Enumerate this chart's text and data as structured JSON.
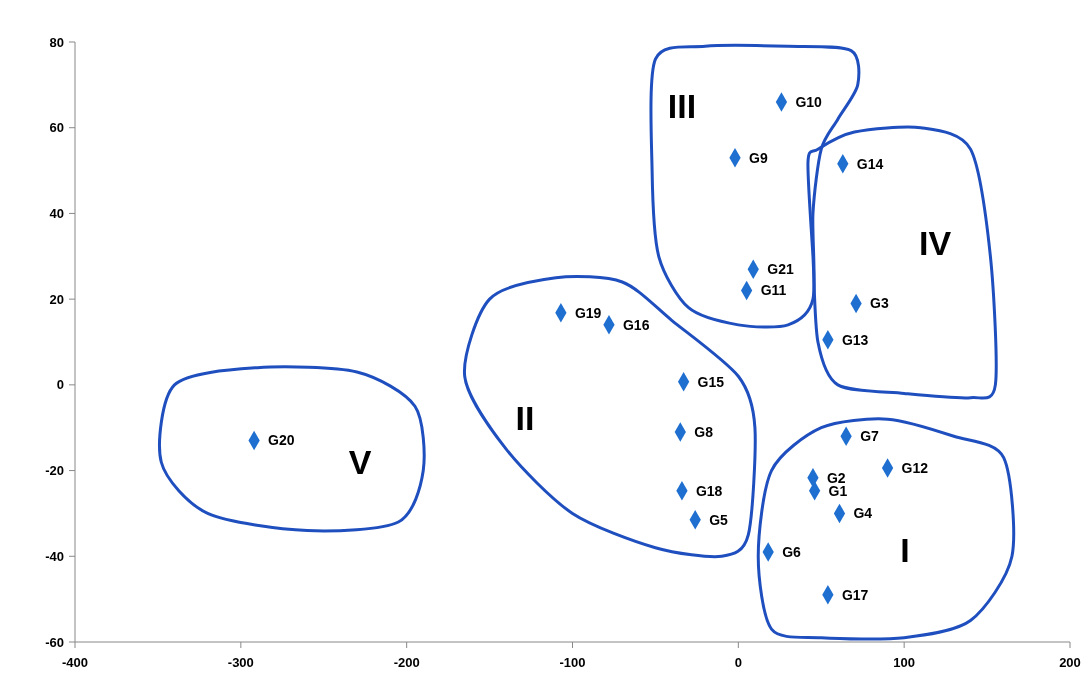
{
  "chart_data": {
    "type": "scatter",
    "marker": "diamond",
    "grid": false,
    "xlim": [
      -400,
      200
    ],
    "xticks": [
      -400,
      -300,
      -200,
      -100,
      0,
      100,
      200
    ],
    "ylim": [
      -60,
      80
    ],
    "yticks": [
      -60,
      -40,
      -20,
      0,
      20,
      40,
      60,
      80
    ],
    "series": [
      {
        "color": "#1f6fd1",
        "x": [
          46,
          45,
          71,
          61,
          -26,
          18,
          65,
          -35,
          -2,
          26,
          5,
          90,
          54,
          63,
          -33,
          -78,
          54,
          -34,
          -107,
          -292,
          9
        ],
        "values": [
          -24.7,
          -21.7,
          19,
          -30,
          -31.5,
          -39,
          -12,
          -11,
          53,
          66,
          22,
          -19.4,
          10.5,
          51.6,
          0.7,
          14,
          -49,
          -24.7,
          16.8,
          -13,
          27
        ]
      }
    ],
    "annotations": [
      {
        "text": "G1",
        "x": 46,
        "y": -24.7
      },
      {
        "text": "G2",
        "x": 45,
        "y": -21.7
      },
      {
        "text": "G3",
        "x": 71,
        "y": 19
      },
      {
        "text": "G4",
        "x": 61,
        "y": -30
      },
      {
        "text": "G5",
        "x": -26,
        "y": -31.5
      },
      {
        "text": "G6",
        "x": 18,
        "y": -39
      },
      {
        "text": "G7",
        "x": 65,
        "y": -12
      },
      {
        "text": "G8",
        "x": -35,
        "y": -11
      },
      {
        "text": "G9",
        "x": -2,
        "y": 53
      },
      {
        "text": "G10",
        "x": 26,
        "y": 66
      },
      {
        "text": "G11",
        "x": 5,
        "y": 22
      },
      {
        "text": "G12",
        "x": 90,
        "y": -19.4
      },
      {
        "text": "G13",
        "x": 54,
        "y": 10.5
      },
      {
        "text": "G14",
        "x": 63,
        "y": 51.6
      },
      {
        "text": "G15",
        "x": -33,
        "y": 0.7
      },
      {
        "text": "G16",
        "x": -78,
        "y": 14
      },
      {
        "text": "G17",
        "x": 54,
        "y": -49
      },
      {
        "text": "G18",
        "x": -34,
        "y": -24.7
      },
      {
        "text": "G19",
        "x": -107,
        "y": 16.8
      },
      {
        "text": "G20",
        "x": -292,
        "y": -13
      },
      {
        "text": "G21",
        "x": 9,
        "y": 27
      },
      "I",
      "II",
      "III",
      "IV",
      "V"
    ]
  }
}
